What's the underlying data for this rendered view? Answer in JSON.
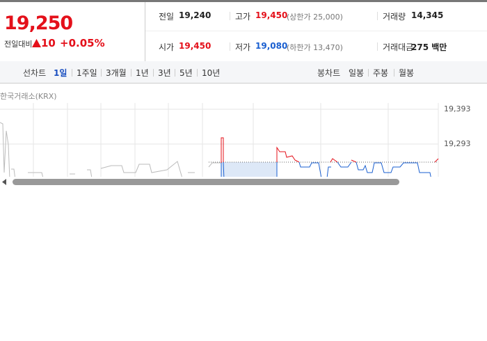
{
  "quote": {
    "price": "19,250",
    "change_label": "전일대비",
    "change": "10",
    "change_pct": "+0.05%"
  },
  "stats": [
    {
      "label": "전일",
      "value": "19,240"
    },
    {
      "label": "고가",
      "value": "19,450",
      "extra": "(상한가 25,000)"
    },
    {
      "label": "거래량",
      "value": "14,345"
    },
    {
      "label": "시가",
      "value": "19,450"
    },
    {
      "label": "저가",
      "value": "19,080",
      "extra": "(하한가 13,470)"
    },
    {
      "label": "거래대금",
      "value": "275 백만"
    }
  ],
  "tabs": {
    "line_label": "선차트",
    "line_periods": [
      "1일",
      "1주일",
      "3개월",
      "1년",
      "3년",
      "5년",
      "10년"
    ],
    "candle_label": "봉차트",
    "candle_periods": [
      "일봉",
      "주봉",
      "월봉"
    ]
  },
  "chart": {
    "source": "한국거래소(KRX)",
    "axis_labels": [
      "19,393",
      "19,293"
    ]
  }
}
